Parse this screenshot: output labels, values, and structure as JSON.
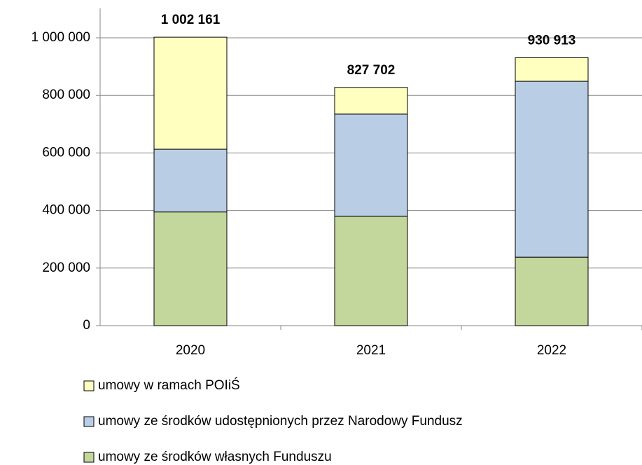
{
  "chart_data": {
    "type": "stacked_bar",
    "categories": [
      "2020",
      "2021",
      "2022"
    ],
    "series": [
      {
        "name": "umowy ze środków własnych Funduszu",
        "color": "#c3d69b",
        "values": [
          395000,
          380000,
          238000
        ]
      },
      {
        "name": "umowy ze środków udostępnionych przez Narodowy Fundusz",
        "color": "#b9cde5",
        "values": [
          218000,
          355000,
          611000
        ]
      },
      {
        "name": "umowy w ramach POIiŚ",
        "color": "#ffffc0",
        "values": [
          389161,
          92702,
          81913
        ]
      }
    ],
    "totals": [
      1002161,
      827702,
      930913
    ],
    "total_labels": [
      "1 002 161",
      "827 702",
      "930 913"
    ],
    "ylim": [
      0,
      1000000
    ],
    "yticks": [
      0,
      {
        "value": 200000,
        "label": "200 000"
      },
      {
        "value": 400000,
        "label": "400 000"
      },
      {
        "value": 600000,
        "label": "600 000"
      },
      {
        "value": 800000,
        "label": "800 000"
      },
      {
        "value": 1000000,
        "label": "1 000 000"
      }
    ],
    "grid": true
  }
}
